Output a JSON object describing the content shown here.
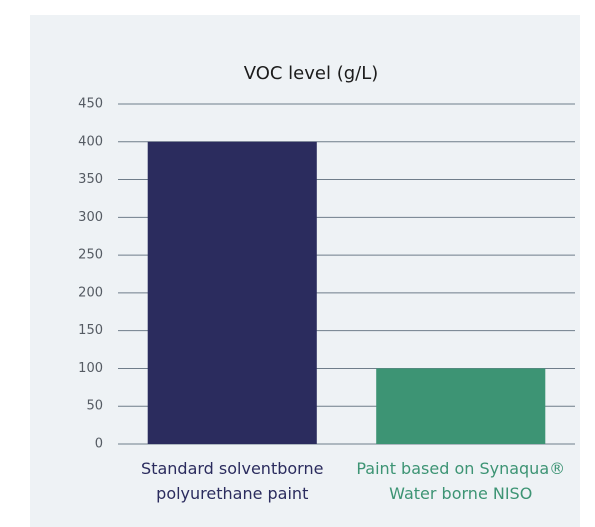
{
  "chart_data": {
    "type": "bar",
    "title": "VOC level (g/L)",
    "categories": [
      "Standard solventborne polyurethane paint",
      "Paint based on Synaqua® Water borne NISO"
    ],
    "values": [
      400,
      100
    ],
    "colors": [
      "#2b2c5e",
      "#3d9474"
    ],
    "ylim": [
      0,
      450
    ],
    "yticks": [
      0,
      50,
      100,
      150,
      200,
      250,
      300,
      350,
      400,
      450
    ],
    "grid": true
  }
}
